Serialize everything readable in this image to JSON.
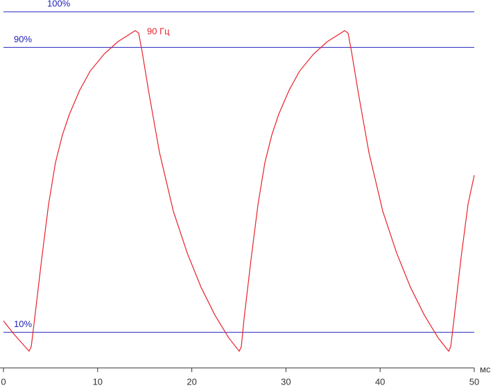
{
  "chart_data": {
    "type": "line",
    "annotation": "90 Гц",
    "x_label": "мс",
    "xlim": [
      0,
      50
    ],
    "xticks": [
      0,
      10,
      20,
      30,
      40,
      50
    ],
    "ylim": [
      0,
      103.3
    ],
    "yticks": [
      {
        "value": 10,
        "label": "10%"
      },
      {
        "value": 90,
        "label": "90%"
      },
      {
        "value": 100,
        "label": "100%"
      }
    ],
    "grid_color": "#2222bb",
    "series": [
      {
        "color": "#e8202a",
        "x": [
          0,
          1.1,
          2.72,
          2.95,
          3.31,
          4.05,
          4.79,
          5.52,
          6.26,
          7.0,
          8.1,
          9.2,
          10.68,
          12.15,
          13.99,
          14.36,
          14.73,
          15.46,
          16.57,
          18.04,
          19.51,
          20.99,
          22.46,
          23.93,
          25.04,
          25.26,
          25.55,
          26.29,
          27.03,
          27.76,
          28.5,
          29.23,
          30.34,
          31.44,
          32.92,
          34.39,
          36.23,
          36.6,
          36.97,
          37.7,
          38.81,
          40.28,
          41.75,
          43.23,
          44.7,
          46.17,
          47.28,
          47.5,
          47.86,
          48.6,
          49.34,
          50.0
        ],
        "values": [
          13.2,
          9.5,
          4.7,
          6.0,
          13.8,
          30.4,
          45.9,
          57.6,
          65.4,
          71.2,
          78.0,
          83.3,
          88.1,
          91.6,
          94.7,
          94.0,
          88.7,
          77.0,
          60.5,
          44.0,
          32.3,
          22.6,
          14.8,
          8.4,
          4.7,
          6.0,
          13.8,
          30.4,
          45.9,
          57.6,
          65.4,
          71.2,
          78.0,
          83.3,
          88.1,
          91.6,
          94.7,
          94.0,
          88.7,
          77.0,
          60.5,
          44.0,
          32.3,
          22.6,
          14.8,
          8.4,
          4.7,
          6.0,
          14.0,
          31.0,
          46.0,
          54.1
        ]
      }
    ]
  }
}
